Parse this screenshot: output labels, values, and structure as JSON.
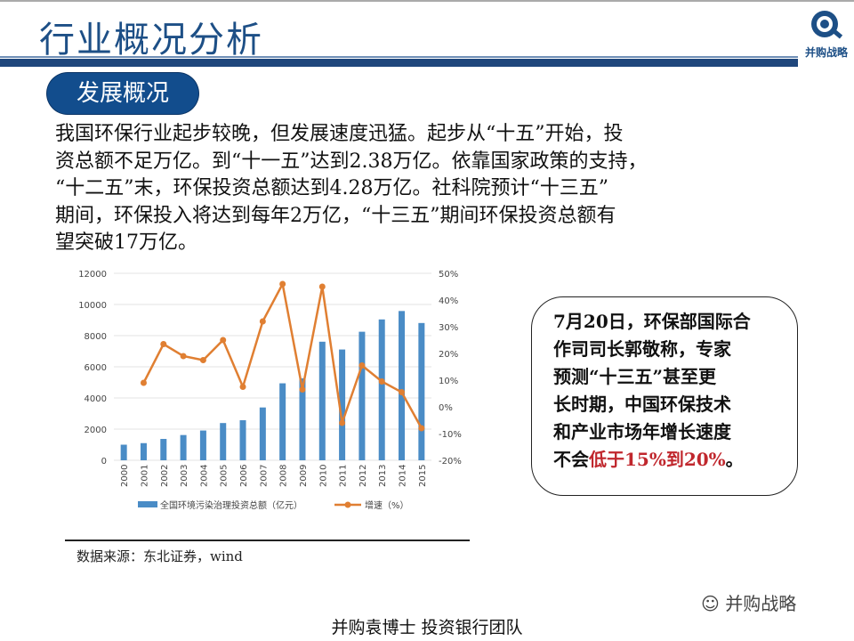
{
  "header": {
    "title": "行业概况分析",
    "logo_text": "并购战略"
  },
  "section_pill": "发展概况",
  "paragraph_lines": [
    "我国环保行业起步较晚，但发展速度迅猛。起步从“十五”开始，投",
    "资总额不足万亿。到“十一五”达到2.38万亿。依靠国家政策的支持，",
    "“十二五”末，环保投资总额达到4.28万亿。社科院预计“十三五”",
    "期间，环保投入将达到每年2万亿，“十三五”期间环保投资总额有",
    "望突破17万亿。"
  ],
  "chart_data": {
    "type": "bar+line",
    "categories": [
      "2000",
      "2001",
      "2002",
      "2003",
      "2004",
      "2005",
      "2006",
      "2007",
      "2008",
      "2009",
      "2010",
      "2011",
      "2012",
      "2013",
      "2014",
      "2015"
    ],
    "series": [
      {
        "name": "全国环境污染治理投资总额（亿元）",
        "type": "bar",
        "axis": "left",
        "color": "#4a8cc6",
        "values": [
          1000,
          1100,
          1370,
          1620,
          1910,
          2390,
          2570,
          3390,
          4940,
          5260,
          7610,
          7110,
          8250,
          9040,
          9580,
          8810
        ]
      },
      {
        "name": "增速（%）",
        "type": "line",
        "axis": "right",
        "color": "#e07f32",
        "values": [
          null,
          9,
          23.5,
          19,
          17.5,
          25,
          7.5,
          32,
          46,
          6.5,
          45,
          -6,
          15.5,
          9.5,
          5.5,
          -8
        ]
      }
    ],
    "y_left": {
      "range": [
        0,
        12000
      ],
      "ticks": [
        "0",
        "2000",
        "4000",
        "6000",
        "8000",
        "10000",
        "12000"
      ]
    },
    "y_right": {
      "range": [
        -20,
        50
      ],
      "ticks": [
        "-20%",
        "-10%",
        "0%",
        "10%",
        "20%",
        "30%",
        "40%",
        "50%"
      ]
    },
    "grid": true,
    "legend": "bottom"
  },
  "source": "数据来源：东北证券，wind",
  "callout": {
    "lines": [
      "7月20日，环保部国际合",
      "作司司长郭敬称，专家",
      "预测“十三五”甚至更",
      "长时期，中国环保技术",
      "和产业市场年增长速度"
    ],
    "last_prefix": "不会",
    "last_highlight": "低于15%到20%",
    "last_suffix": "。",
    "highlight_color": "#c0272d"
  },
  "watermark": "并购战略",
  "footer": "并购袁博士 投资银行团队"
}
